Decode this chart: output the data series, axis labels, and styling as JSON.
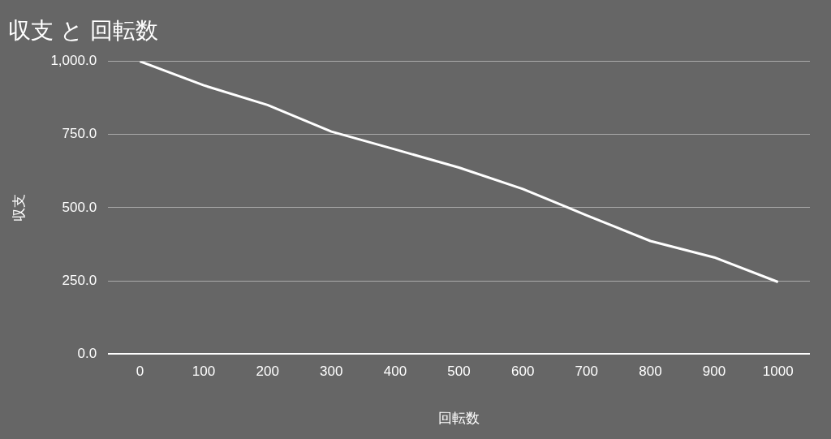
{
  "chart_data": {
    "type": "line",
    "title": "収支 と 回転数",
    "xlabel": "回転数",
    "ylabel": "収支",
    "categories": [
      "0",
      "100",
      "200",
      "300",
      "400",
      "500",
      "600",
      "700",
      "800",
      "900",
      "1000"
    ],
    "series": [
      {
        "color": "#ffffff",
        "values": [
          1000,
          918,
          851,
          760,
          699,
          637,
          564,
          474,
          386,
          330,
          246
        ]
      }
    ],
    "ylim": [
      0,
      1000
    ],
    "yticks": [
      {
        "value": 0,
        "label": "0.0"
      },
      {
        "value": 250,
        "label": "250.0"
      },
      {
        "value": 500,
        "label": "500.0"
      },
      {
        "value": 750,
        "label": "750.0"
      },
      {
        "value": 1000,
        "label": "1,000.0"
      }
    ],
    "grid": "y",
    "legend": false,
    "marker": "none",
    "line_style": "solid"
  }
}
